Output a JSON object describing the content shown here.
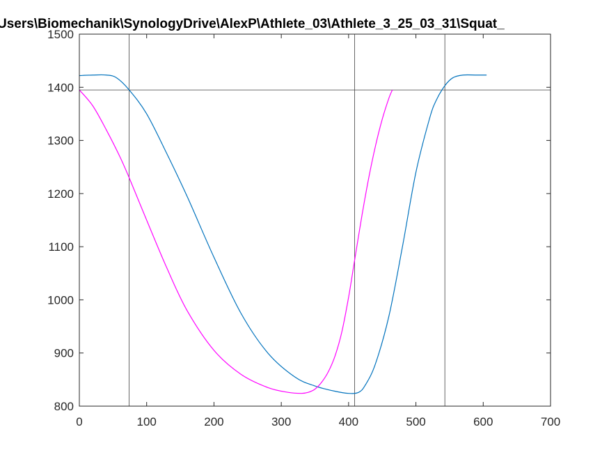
{
  "chart_data": {
    "type": "line",
    "title": "Users\\Biomechanik\\SynologyDrive\\AlexP\\Athlete_03\\Athlete_3_25_03_31\\Squat_",
    "xlabel": "",
    "ylabel": "",
    "xlim": [
      0,
      700
    ],
    "ylim": [
      800,
      1500
    ],
    "x_ticks": [
      "0",
      "100",
      "200",
      "300",
      "400",
      "500",
      "600",
      "700"
    ],
    "y_ticks": [
      "800",
      "900",
      "1000",
      "1100",
      "1200",
      "1300",
      "1400",
      "1500"
    ],
    "grid": false,
    "reference_lines": {
      "vertical": [
        74,
        409,
        543
      ],
      "horizontal": [
        1395
      ]
    },
    "series": [
      {
        "color": "#0072BD",
        "x": [
          0,
          20,
          40,
          55,
          74,
          100,
          130,
          160,
          200,
          240,
          280,
          320,
          350,
          380,
          400,
          415,
          425,
          440,
          460,
          480,
          500,
          520,
          530,
          543,
          555,
          570,
          590,
          605
        ],
        "y": [
          1422,
          1423,
          1423,
          1418,
          1395,
          1350,
          1275,
          1195,
          1080,
          975,
          900,
          855,
          838,
          828,
          824,
          826,
          840,
          880,
          970,
          1100,
          1240,
          1340,
          1375,
          1403,
          1418,
          1423,
          1423,
          1423
        ]
      },
      {
        "color": "#FF00FF",
        "x": [
          0,
          20,
          40,
          60,
          74,
          100,
          130,
          160,
          200,
          240,
          280,
          310,
          330,
          340,
          350,
          360,
          370,
          380,
          390,
          400,
          409,
          420,
          430,
          440,
          450,
          460,
          465
        ],
        "y": [
          1395,
          1365,
          1320,
          1270,
          1230,
          1150,
          1060,
          980,
          905,
          860,
          835,
          826,
          824,
          826,
          832,
          845,
          865,
          895,
          940,
          1005,
          1075,
          1160,
          1230,
          1290,
          1340,
          1380,
          1395
        ]
      }
    ]
  }
}
